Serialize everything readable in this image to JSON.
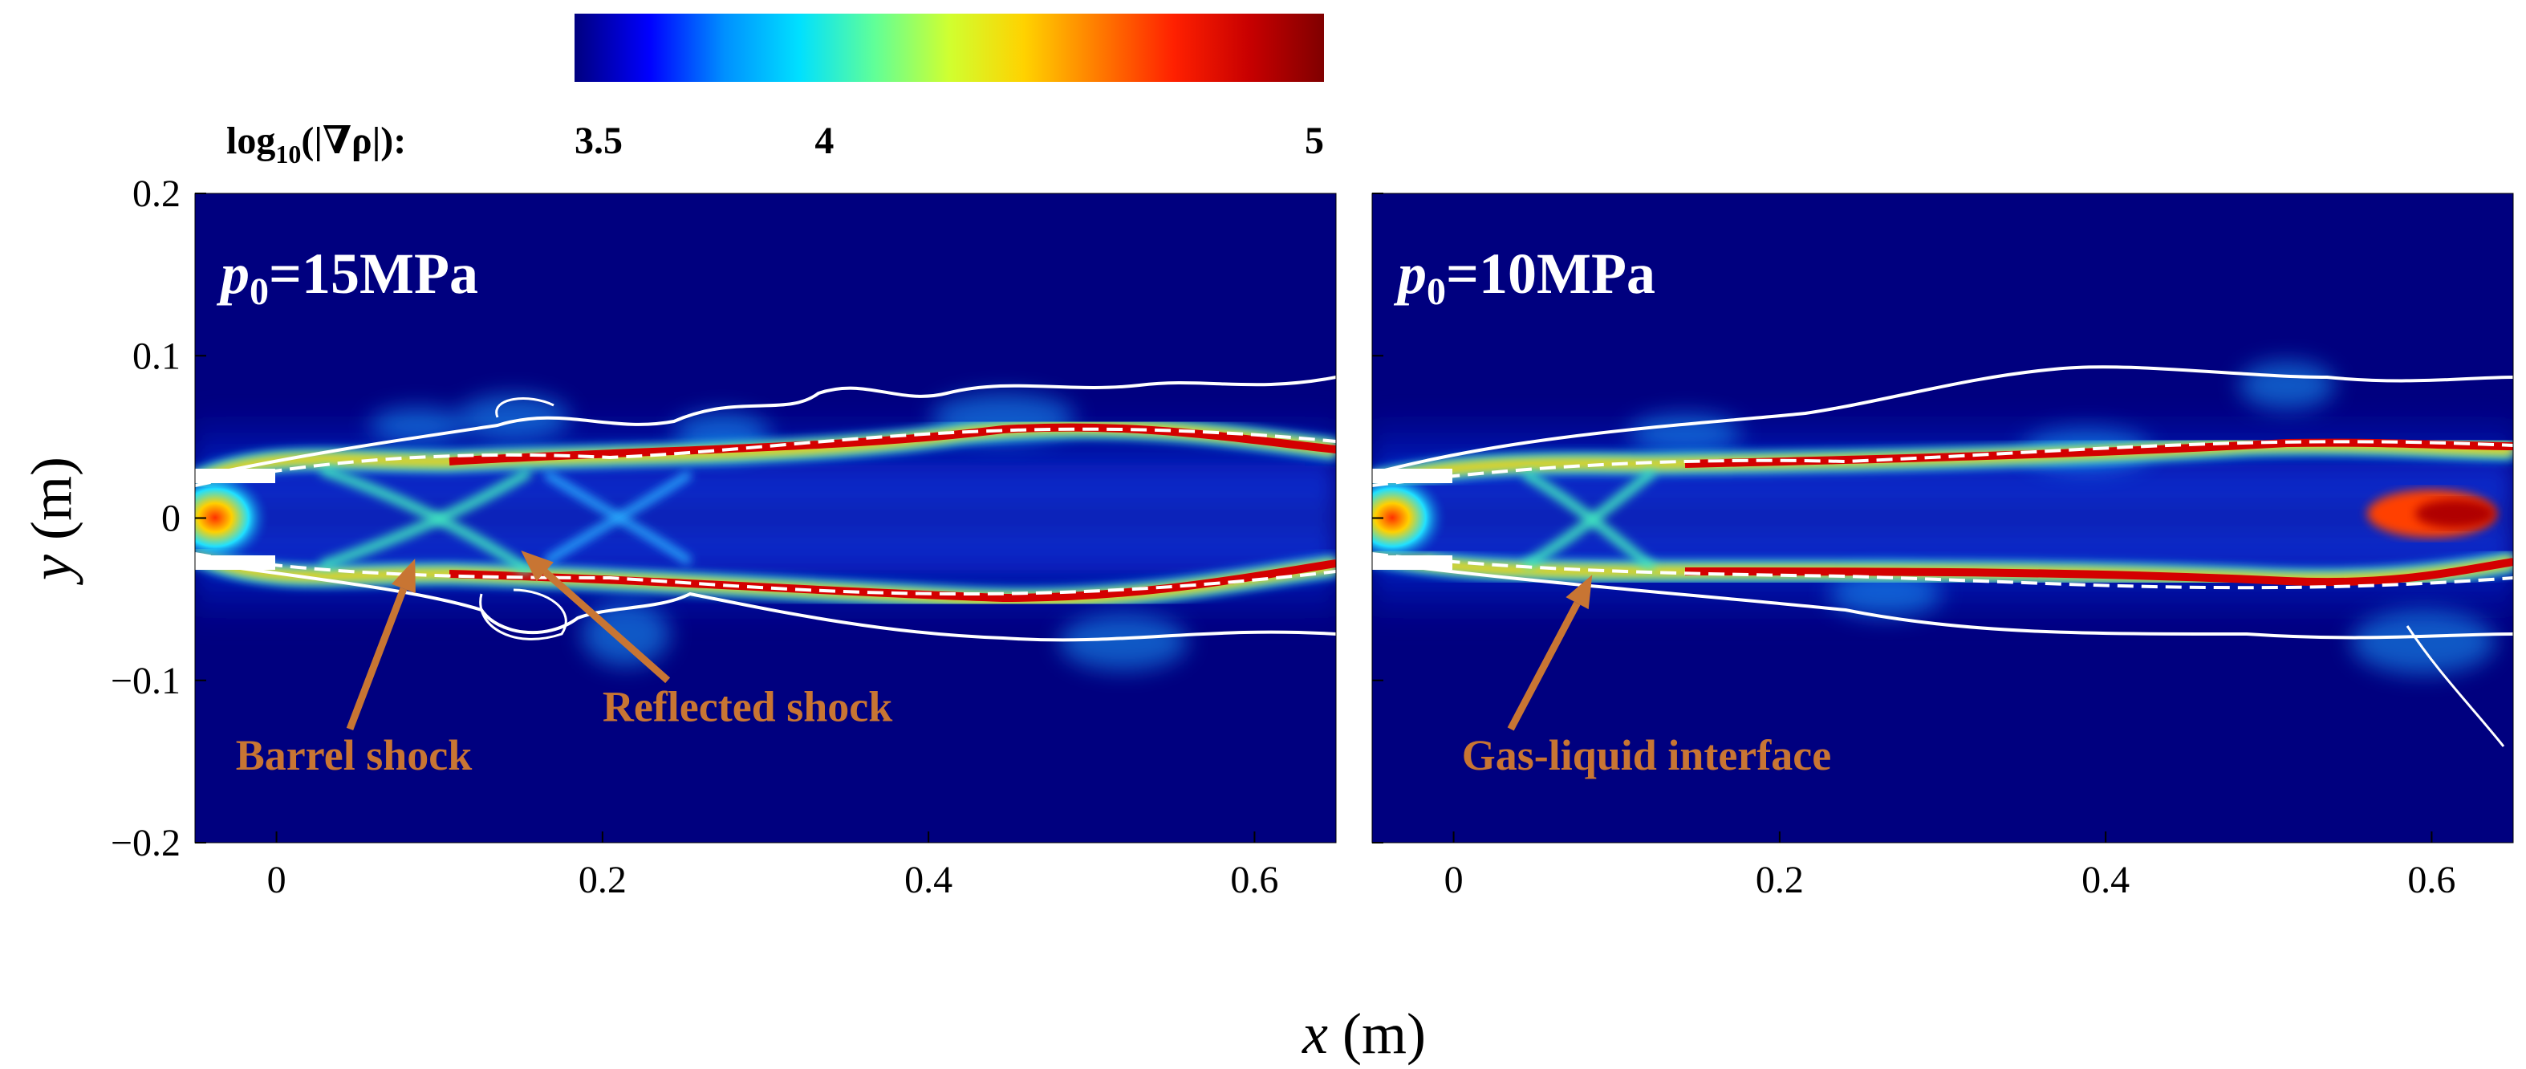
{
  "colorbar": {
    "label_prefix": "log",
    "label_sub": "10",
    "label_suffix": "(|∇ρ|):",
    "ticks": [
      {
        "value": 3.5,
        "label": "3.5"
      },
      {
        "value": 4,
        "label": "4"
      },
      {
        "value": 5,
        "label": "5"
      }
    ],
    "range": [
      3.5,
      5
    ],
    "stops": [
      "#00007f",
      "#0000ff",
      "#0090ff",
      "#00e0ff",
      "#60ff98",
      "#d0ff30",
      "#ffd200",
      "#ff7a00",
      "#ff2000",
      "#c80000",
      "#800000"
    ]
  },
  "axes": {
    "xlabel_var": "x",
    "xlabel_unit": " (m)",
    "ylabel_var": "y",
    "ylabel_unit": " (m)"
  },
  "chart_data": [
    {
      "type": "heatmap",
      "title_var": "p",
      "title_sub": "0",
      "title_rest": "=15MPa",
      "xlim": [
        -0.05,
        0.65
      ],
      "ylim": [
        -0.2,
        0.2
      ],
      "xticks": [
        0,
        0.2,
        0.4,
        0.6
      ],
      "xticklabels": [
        "0",
        "0.2",
        "0.4",
        "0.6"
      ],
      "yticks": [
        0.2,
        0.1,
        0,
        -0.1,
        -0.2
      ],
      "yticklabels": [
        "0.2",
        "0.1",
        "0",
        "−0.1",
        "−0.2"
      ],
      "annotations": [
        {
          "text": "Barrel shock",
          "label_at": [
            -0.025,
            -0.155
          ],
          "arrow_from": [
            0.045,
            -0.13
          ],
          "arrow_to": [
            0.085,
            -0.025
          ]
        },
        {
          "text": "Reflected shock",
          "label_at": [
            0.2,
            -0.125
          ],
          "arrow_from": [
            0.24,
            -0.1
          ],
          "arrow_to": [
            0.15,
            -0.02
          ]
        }
      ]
    },
    {
      "type": "heatmap",
      "title_var": "p",
      "title_sub": "0",
      "title_rest": "=10MPa",
      "xlim": [
        -0.05,
        0.65
      ],
      "ylim": [
        -0.2,
        0.2
      ],
      "xticks": [
        0,
        0.2,
        0.4,
        0.6
      ],
      "xticklabels": [
        "0",
        "0.2",
        "0.4",
        "0.6"
      ],
      "yticks": [
        0.2,
        0.1,
        0,
        -0.1,
        -0.2
      ],
      "yticklabels": [],
      "annotations": [
        {
          "text": "Gas-liquid interface",
          "label_at": [
            0.005,
            -0.155
          ],
          "arrow_from": [
            0.035,
            -0.13
          ],
          "arrow_to": [
            0.085,
            -0.035
          ]
        }
      ]
    }
  ]
}
